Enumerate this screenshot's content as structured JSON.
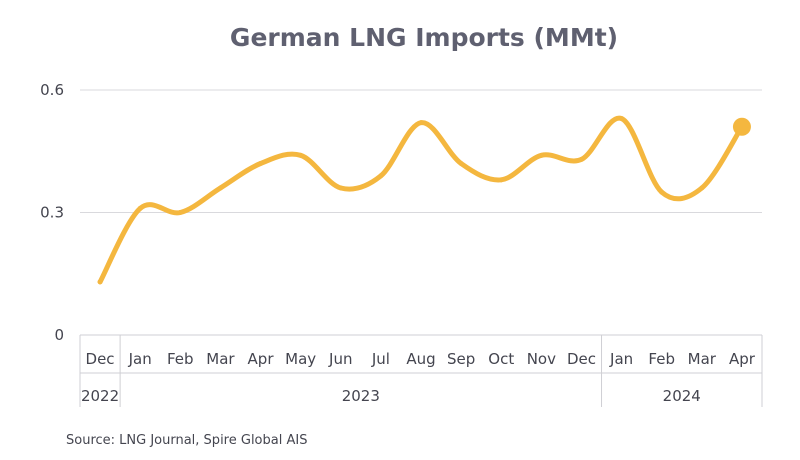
{
  "chart_data": {
    "type": "line",
    "title": "German LNG Imports (MMt)",
    "source": "Source: LNG Journal, Spire Global AIS",
    "categories": [
      "Dec",
      "Jan",
      "Feb",
      "Mar",
      "Apr",
      "May",
      "Jun",
      "Jul",
      "Aug",
      "Sep",
      "Oct",
      "Nov",
      "Dec",
      "Jan",
      "Feb",
      "Mar",
      "Apr"
    ],
    "year_groups": [
      {
        "label": "2022",
        "start": 0,
        "end": 0
      },
      {
        "label": "2023",
        "start": 1,
        "end": 12
      },
      {
        "label": "2024",
        "start": 13,
        "end": 16
      }
    ],
    "series": [
      {
        "values": [
          0.13,
          0.31,
          0.3,
          0.36,
          0.42,
          0.44,
          0.36,
          0.39,
          0.52,
          0.42,
          0.38,
          0.44,
          0.43,
          0.53,
          0.35,
          0.36,
          0.51
        ]
      }
    ],
    "yticks": [
      0,
      0.3,
      0.6
    ],
    "ytick_labels": [
      "0",
      "0.3",
      "0.6"
    ],
    "ylim": [
      0,
      0.6
    ],
    "xlabel": "",
    "ylabel": "",
    "grid": true,
    "line_color": "#f4b73f",
    "end_marker": true
  }
}
